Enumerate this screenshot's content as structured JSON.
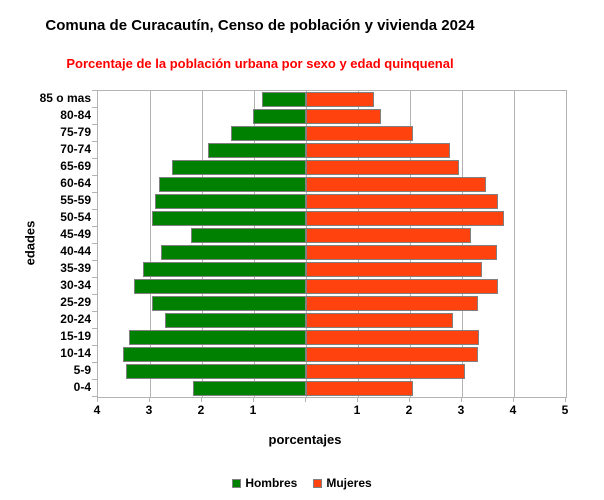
{
  "title": "Comuna de Curacautín, Censo de población y vivienda 2024",
  "subtitle": "Porcentaje de la población urbana por sexo y edad quinquenal",
  "colors": {
    "title": "#000000",
    "subtitle": "#ff0000",
    "hombres": "#008000",
    "mujeres": "#ff420e",
    "bar_border": "#808080",
    "grid": "#b3b3b3",
    "background": "#ffffff"
  },
  "chart_data": {
    "type": "bar",
    "variant": "population-pyramid",
    "title": "Comuna de Curacautín, Censo de población y vivienda 2024",
    "subtitle": "Porcentaje de la población urbana por sexo y edad quinquenal",
    "xlabel": "porcentajes",
    "ylabel": "edades",
    "grid": true,
    "legend_position": "bottom",
    "categories_top_to_bottom": [
      "85 o mas",
      "80-84",
      "75-79",
      "70-74",
      "65-69",
      "60-64",
      "55-59",
      "50-54",
      "45-49",
      "40-44",
      "35-39",
      "30-34",
      "25-29",
      "20-24",
      "15-19",
      "10-14",
      "5-9",
      "0-4"
    ],
    "series": [
      {
        "name": "Hombres",
        "side": "left",
        "color": "#008000",
        "values": [
          0.85,
          1.02,
          1.45,
          1.88,
          2.58,
          2.83,
          2.91,
          2.96,
          2.21,
          2.79,
          3.14,
          3.3,
          2.97,
          2.72,
          3.41,
          3.51,
          3.47,
          2.18
        ]
      },
      {
        "name": "Mujeres",
        "side": "right",
        "color": "#ff420e",
        "values": [
          1.31,
          1.45,
          2.05,
          2.76,
          2.94,
          3.46,
          3.7,
          3.8,
          3.17,
          3.67,
          3.39,
          3.7,
          3.31,
          2.83,
          3.33,
          3.3,
          3.06,
          2.06
        ]
      }
    ],
    "x_axis": {
      "left_max": 4,
      "right_max": 5,
      "tick_step": 1,
      "tick_labels": [
        "4",
        "3",
        "2",
        "1",
        "",
        "1",
        "2",
        "3",
        "4",
        "5"
      ]
    }
  }
}
